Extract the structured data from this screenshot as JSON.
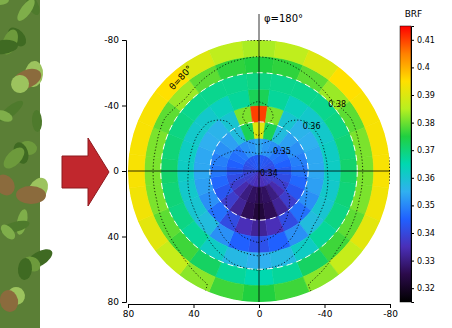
{
  "chart_data": {
    "type": "polar_heatmap",
    "annotations": [
      "φ=180°",
      "θ=80°"
    ],
    "xlim": [
      80,
      -80
    ],
    "xticks": [
      80,
      40,
      0,
      -40,
      -80
    ],
    "ylim": [
      -80,
      80
    ],
    "yticks": [
      -80,
      -40,
      0,
      40,
      80
    ],
    "rlim": [
      0,
      80
    ],
    "rticks": [
      30,
      60
    ],
    "theta_edges": [
      0,
      10,
      20,
      30,
      40,
      50,
      60,
      70,
      80
    ],
    "phi_edges": [
      -7.5,
      7.5,
      22.5,
      37.5,
      52.5,
      67.5,
      82.5,
      97.5,
      112.5,
      127.5,
      142.5,
      157.5,
      172.5,
      187.5,
      202.5,
      217.5,
      232.5,
      247.5,
      262.5,
      277.5,
      292.5,
      307.5,
      322.5,
      337.5,
      352.5
    ],
    "cells": [
      [
        0.335,
        0.335,
        0.336,
        0.337,
        0.338,
        0.339,
        0.34,
        0.341,
        0.342,
        0.343,
        0.343,
        0.344,
        0.344,
        0.344,
        0.343,
        0.343,
        0.342,
        0.341,
        0.34,
        0.339,
        0.338,
        0.337,
        0.336,
        0.335
      ],
      [
        0.326,
        0.327,
        0.33,
        0.334,
        0.338,
        0.341,
        0.343,
        0.345,
        0.347,
        0.348,
        0.351,
        0.352,
        0.354,
        0.352,
        0.351,
        0.348,
        0.347,
        0.345,
        0.343,
        0.341,
        0.338,
        0.334,
        0.33,
        0.327
      ],
      [
        0.323,
        0.326,
        0.332,
        0.338,
        0.343,
        0.346,
        0.348,
        0.349,
        0.351,
        0.353,
        0.358,
        0.373,
        0.39,
        0.373,
        0.358,
        0.353,
        0.351,
        0.349,
        0.348,
        0.346,
        0.343,
        0.338,
        0.332,
        0.326
      ],
      [
        0.332,
        0.335,
        0.341,
        0.347,
        0.351,
        0.353,
        0.354,
        0.354,
        0.355,
        0.356,
        0.36,
        0.381,
        0.41,
        0.381,
        0.36,
        0.356,
        0.355,
        0.354,
        0.354,
        0.353,
        0.351,
        0.347,
        0.341,
        0.335
      ],
      [
        0.342,
        0.345,
        0.351,
        0.358,
        0.36,
        0.361,
        0.362,
        0.362,
        0.361,
        0.361,
        0.363,
        0.367,
        0.373,
        0.367,
        0.363,
        0.361,
        0.361,
        0.362,
        0.362,
        0.361,
        0.36,
        0.358,
        0.351,
        0.345
      ],
      [
        0.355,
        0.357,
        0.362,
        0.367,
        0.369,
        0.37,
        0.371,
        0.37,
        0.369,
        0.368,
        0.368,
        0.368,
        0.369,
        0.368,
        0.368,
        0.368,
        0.369,
        0.37,
        0.371,
        0.37,
        0.369,
        0.367,
        0.362,
        0.357
      ],
      [
        0.365,
        0.367,
        0.372,
        0.377,
        0.379,
        0.381,
        0.381,
        0.381,
        0.379,
        0.383,
        0.379,
        0.376,
        0.375,
        0.376,
        0.379,
        0.383,
        0.379,
        0.381,
        0.381,
        0.381,
        0.379,
        0.377,
        0.372,
        0.367
      ],
      [
        0.375,
        0.377,
        0.382,
        0.387,
        0.391,
        0.393,
        0.394,
        0.394,
        0.394,
        0.395,
        0.39,
        0.386,
        0.384,
        0.386,
        0.39,
        0.395,
        0.394,
        0.394,
        0.394,
        0.393,
        0.391,
        0.387,
        0.382,
        0.377
      ]
    ],
    "contours": [
      0.34,
      0.35,
      0.36,
      0.38
    ],
    "colorbar": {
      "label": "BRF",
      "range": [
        0.315,
        0.415
      ],
      "ticks": [
        0.32,
        0.33,
        0.34,
        0.35,
        0.36,
        0.37,
        0.38,
        0.39,
        0.4,
        0.41
      ]
    }
  }
}
